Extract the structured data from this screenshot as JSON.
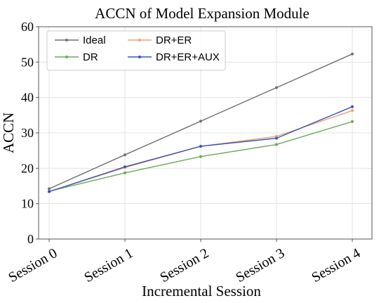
{
  "chart_data": {
    "type": "line",
    "title": "ACCN of Model Expansion Module",
    "xlabel": "Incremental Session",
    "ylabel": "ACCN",
    "categories": [
      "Session 0",
      "Session 1",
      "Session 2",
      "Session 3",
      "Session 4"
    ],
    "ylim": [
      0,
      60
    ],
    "yticks": [
      0,
      10,
      20,
      30,
      40,
      50,
      60
    ],
    "grid": true,
    "legend": "top-left",
    "series": [
      {
        "name": "Ideal",
        "color": "#707070",
        "values": [
          14.2,
          23.8,
          33.3,
          42.8,
          52.3
        ]
      },
      {
        "name": "DR",
        "color": "#6aaa5a",
        "values": [
          13.5,
          18.7,
          23.3,
          26.7,
          33.2
        ]
      },
      {
        "name": "DR+ER",
        "color": "#f0a070",
        "values": [
          13.4,
          20.2,
          26.2,
          29.0,
          36.3
        ]
      },
      {
        "name": "DR+ER+AUX",
        "color": "#3a55b8",
        "values": [
          13.4,
          20.4,
          26.2,
          28.5,
          37.4
        ]
      }
    ]
  }
}
